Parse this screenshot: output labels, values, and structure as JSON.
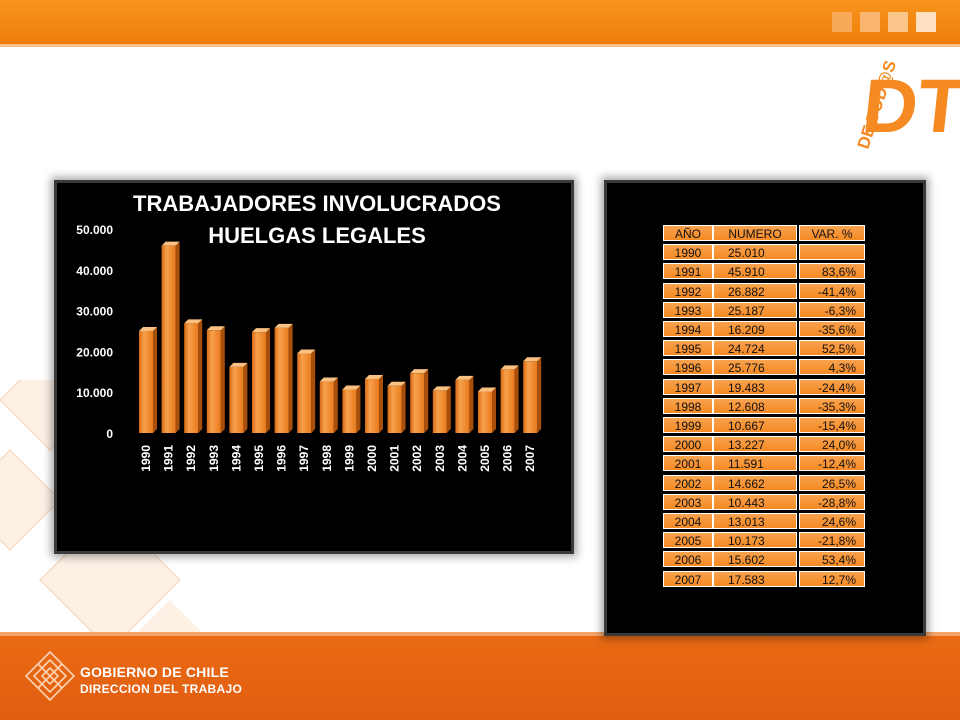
{
  "footer": {
    "line1": "GOBIERNO DE CHILE",
    "line2": "DIRECCION DEL TRABAJO"
  },
  "logo": {
    "text": "DE TOD@S",
    "letters": "DT"
  },
  "colors": {
    "accent": "#f7941d",
    "bar": "#f58a23",
    "panel": "#000000",
    "band": "#e8661a"
  },
  "table": {
    "headers": [
      "AÑO",
      "NUMERO",
      "VAR. %"
    ],
    "rows": [
      [
        "1990",
        "25.010",
        ""
      ],
      [
        "1991",
        "45.910",
        "83,6%"
      ],
      [
        "1992",
        "26.882",
        "-41,4%"
      ],
      [
        "1993",
        "25.187",
        "-6,3%"
      ],
      [
        "1994",
        "16.209",
        "-35,6%"
      ],
      [
        "1995",
        "24.724",
        "52,5%"
      ],
      [
        "1996",
        "25.776",
        "4,3%"
      ],
      [
        "1997",
        "19.483",
        "-24,4%"
      ],
      [
        "1998",
        "12.608",
        "-35,3%"
      ],
      [
        "1999",
        "10.667",
        "-15,4%"
      ],
      [
        "2000",
        "13.227",
        "24,0%"
      ],
      [
        "2001",
        "11.591",
        "-12,4%"
      ],
      [
        "2002",
        "14.662",
        "26,5%"
      ],
      [
        "2003",
        "10.443",
        "-28,8%"
      ],
      [
        "2004",
        "13.013",
        "24,6%"
      ],
      [
        "2005",
        "10.173",
        "-21,8%"
      ],
      [
        "2006",
        "15.602",
        "53,4%"
      ],
      [
        "2007",
        "17.583",
        "12,7%"
      ]
    ]
  },
  "chart_data": {
    "type": "bar",
    "title_lines": [
      "TRABAJADORES INVOLUCRADOS",
      "HUELGAS LEGALES"
    ],
    "categories": [
      "1990",
      "1991",
      "1992",
      "1993",
      "1994",
      "1995",
      "1996",
      "1997",
      "1998",
      "1999",
      "2000",
      "2001",
      "2002",
      "2003",
      "2004",
      "2005",
      "2006",
      "2007"
    ],
    "values": [
      25010,
      45910,
      26882,
      25187,
      16209,
      24724,
      25776,
      19483,
      12608,
      10667,
      13227,
      11591,
      14662,
      10443,
      13013,
      10173,
      15602,
      17583
    ],
    "yticks": [
      0,
      10000,
      20000,
      30000,
      40000,
      50000
    ],
    "ytick_labels": [
      "0",
      "10.000",
      "20.000",
      "30.000",
      "40.000",
      "50.000"
    ],
    "ylim": [
      0,
      50000
    ],
    "xlabel": "",
    "ylabel": "",
    "grid": false,
    "legend": "none",
    "style": "3d-bars"
  }
}
